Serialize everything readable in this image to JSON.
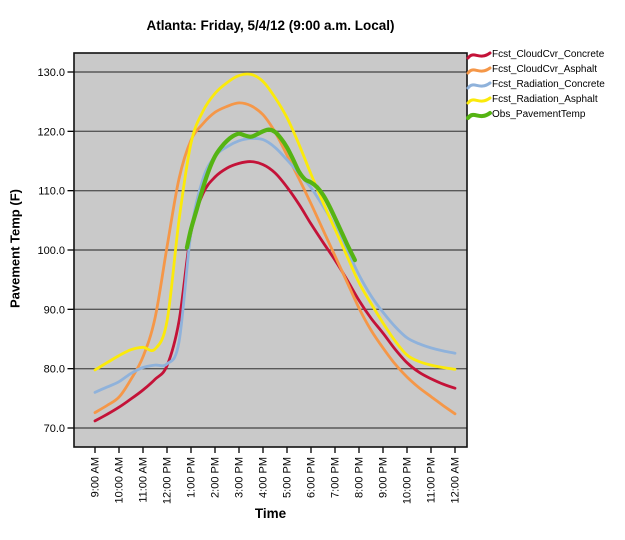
{
  "chart_data": {
    "type": "line",
    "title": "Atlanta: Friday, 5/4/12 (9:00 a.m. Local)",
    "xlabel": "Time",
    "ylabel": "Pavement Temp (F)",
    "grid": "horizontal",
    "legend_position": "top-right",
    "plot_bg_color": "#c9c9c9",
    "gridline_color": "#585858",
    "frame_color": "#111111",
    "ylim": [
      66.8,
      133.2
    ],
    "y_tick_values": [
      70,
      80,
      90,
      100,
      110,
      120,
      130
    ],
    "y_tick_labels": [
      "70.0",
      "80.0",
      "90.0",
      "100.0",
      "110.0",
      "120.0",
      "130.0"
    ],
    "x_tick_hours": [
      9,
      10,
      11,
      12,
      13,
      14,
      15,
      16,
      17,
      18,
      19,
      20,
      21,
      22,
      23,
      24
    ],
    "x_tick_labels": [
      "9:00 AM",
      "10:00 AM",
      "11:00 AM",
      "12:00 PM",
      "1:00 PM",
      "2:00 PM",
      "3:00 PM",
      "4:00 PM",
      "5:00 PM",
      "6:00 PM",
      "7:00 PM",
      "8:00 PM",
      "9:00 PM",
      "10:00 PM",
      "11:00 PM",
      "12:00 AM"
    ],
    "series": [
      {
        "name": "Fcst_CloudCvr_Concrete",
        "color": "#C41238",
        "line_width": 2.8,
        "x": [
          9,
          9.5,
          10,
          10.5,
          11,
          11.5,
          12,
          12.5,
          13,
          13.5,
          14,
          14.5,
          15,
          15.5,
          16,
          16.5,
          17,
          17.5,
          18,
          18.5,
          19,
          19.5,
          20,
          20.5,
          21,
          21.5,
          22,
          22.5,
          23,
          23.5,
          24
        ],
        "values": [
          71.2,
          72.3,
          73.5,
          74.9,
          76.4,
          78.2,
          80.5,
          88,
          103,
          109.5,
          112.3,
          113.8,
          114.6,
          114.9,
          114.4,
          113,
          110.6,
          107.7,
          104.4,
          101.3,
          98.3,
          95,
          91.5,
          88.5,
          86,
          83.3,
          81,
          79.4,
          78.3,
          77.4,
          76.7
        ]
      },
      {
        "name": "Fcst_CloudCvr_Asphalt",
        "color": "#F59748",
        "line_width": 2.8,
        "x": [
          9,
          9.5,
          10,
          10.5,
          11,
          11.5,
          12,
          12.5,
          13,
          13.5,
          14,
          14.5,
          15,
          15.5,
          16,
          16.5,
          17,
          17.5,
          18,
          18.5,
          19,
          19.5,
          20,
          20.5,
          21,
          21.5,
          22,
          22.5,
          23,
          23.5,
          24
        ],
        "values": [
          72.6,
          73.8,
          75.2,
          78.2,
          82,
          88.5,
          100.5,
          112,
          118.5,
          121.3,
          123.2,
          124.2,
          124.8,
          124.3,
          122.8,
          119.9,
          116,
          112,
          107.8,
          103.4,
          99,
          94.6,
          90.2,
          86.5,
          83.5,
          80.8,
          78.6,
          76.8,
          75.3,
          73.8,
          72.4
        ]
      },
      {
        "name": "Fcst_Radiation_Concrete",
        "color": "#8FB2DB",
        "line_width": 2.8,
        "x": [
          9,
          9.5,
          10,
          10.5,
          11,
          11.5,
          12,
          12.5,
          13,
          13.5,
          14,
          14.5,
          15,
          15.5,
          16,
          16.5,
          17,
          17.5,
          18,
          18.5,
          19,
          19.5,
          20,
          20.5,
          21,
          21.5,
          22,
          22.5,
          23,
          23.5,
          24
        ],
        "values": [
          76,
          76.9,
          77.8,
          79.2,
          80.2,
          80.6,
          80.8,
          84.5,
          103,
          112,
          115.8,
          117.4,
          118.4,
          118.8,
          118.6,
          117.3,
          115.2,
          112.9,
          110.5,
          107.4,
          104,
          100,
          95.8,
          92.3,
          89.5,
          87.1,
          85.2,
          84.2,
          83.5,
          83,
          82.6
        ]
      },
      {
        "name": "Fcst_Radiation_Asphalt",
        "color": "#FBEA0A",
        "line_width": 2.8,
        "x": [
          9,
          9.5,
          10,
          10.5,
          11,
          11.5,
          12,
          12.5,
          13,
          13.5,
          14,
          14.5,
          15,
          15.5,
          16,
          16.5,
          17,
          17.5,
          18,
          18.5,
          19,
          19.5,
          20,
          20.5,
          21,
          21.5,
          22,
          22.5,
          23,
          23.5,
          24
        ],
        "values": [
          79.8,
          81,
          82.2,
          83.2,
          83.6,
          83.3,
          88,
          105,
          118,
          123.4,
          126.4,
          128.2,
          129.4,
          129.6,
          128.4,
          125.7,
          122.3,
          117.8,
          112.8,
          108,
          103.5,
          99,
          94.5,
          91,
          87.7,
          84.7,
          82.3,
          81.2,
          80.6,
          80.2,
          79.9
        ]
      },
      {
        "name": "Obs_PavementTemp",
        "color": "#55B413",
        "line_width": 4.2,
        "x": [
          12.83,
          13,
          13.25,
          13.5,
          13.75,
          14,
          14.25,
          14.5,
          14.75,
          15,
          15.25,
          15.5,
          15.75,
          16,
          16.25,
          16.5,
          16.75,
          17,
          17.25,
          17.5,
          17.75,
          18,
          18.25,
          18.5,
          18.75,
          19,
          19.25,
          19.5,
          19.83
        ],
        "values": [
          100.4,
          103.5,
          107,
          110.5,
          113.5,
          115.8,
          117.3,
          118.4,
          119.2,
          119.6,
          119.3,
          119.1,
          119.5,
          120,
          120.3,
          119.9,
          118.8,
          117.3,
          115.3,
          113.2,
          111.9,
          111.4,
          110.6,
          109.3,
          107.5,
          105.4,
          103.2,
          101,
          98.3
        ]
      }
    ]
  }
}
